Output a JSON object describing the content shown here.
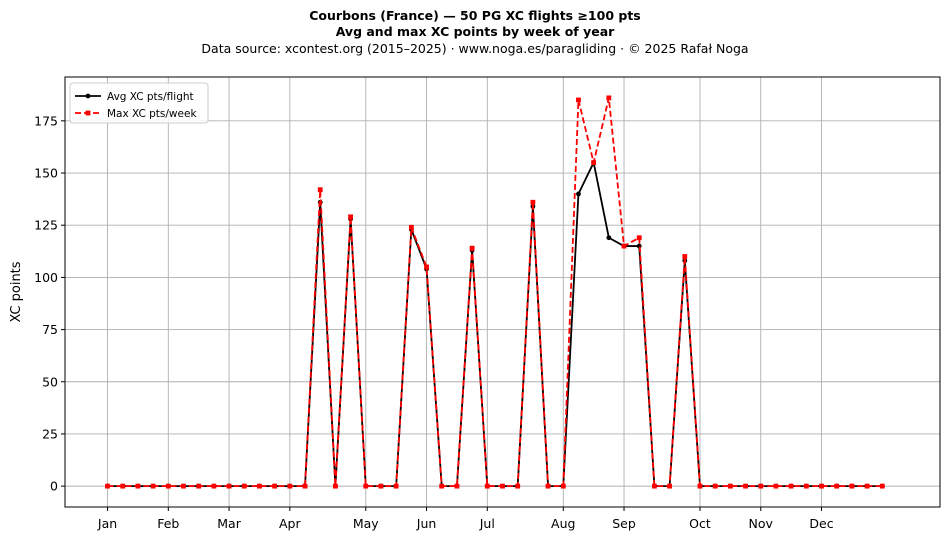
{
  "header": {
    "title_line1": "Courbons (France)  —  50 PG XC flights ≥100 pts",
    "title_line2": "Avg and max XC points by week of year",
    "subtitle": "Data source: xcontest.org (2015–2025)  ·  www.noga.es/paragliding  ·  © 2025 Rafał Noga"
  },
  "chart_data": {
    "type": "line",
    "title": "Courbons (France)  —  50 PG XC flights ≥100 pts",
    "subtitle": "Avg and max XC points by week of year",
    "ylabel": "XC points",
    "xlabel": "",
    "ylim": [
      -10,
      196
    ],
    "xlim": [
      -2.8,
      54.8
    ],
    "yticks": [
      0,
      25,
      50,
      75,
      100,
      125,
      150,
      175
    ],
    "xticks": [
      {
        "label": "Jan",
        "pos": 0
      },
      {
        "label": "Feb",
        "pos": 4
      },
      {
        "label": "Mar",
        "pos": 8
      },
      {
        "label": "Apr",
        "pos": 12
      },
      {
        "label": "May",
        "pos": 17
      },
      {
        "label": "Jun",
        "pos": 21
      },
      {
        "label": "Jul",
        "pos": 25
      },
      {
        "label": "Aug",
        "pos": 30
      },
      {
        "label": "Sep",
        "pos": 34
      },
      {
        "label": "Oct",
        "pos": 39
      },
      {
        "label": "Nov",
        "pos": 43
      },
      {
        "label": "Dec",
        "pos": 47
      }
    ],
    "grid": true,
    "legend_position": "top-left",
    "x": [
      0,
      1,
      2,
      3,
      4,
      5,
      6,
      7,
      8,
      9,
      10,
      11,
      12,
      13,
      14,
      15,
      16,
      17,
      18,
      19,
      20,
      21,
      22,
      23,
      24,
      25,
      26,
      27,
      28,
      29,
      30,
      31,
      32,
      33,
      34,
      35,
      36,
      37,
      38,
      39,
      40,
      41,
      42,
      43,
      44,
      45,
      46,
      47,
      48,
      49,
      50,
      51
    ],
    "series": [
      {
        "name": "Avg XC pts/flight",
        "color": "#000000",
        "style": "solid",
        "marker": "circle",
        "values": [
          0,
          0,
          0,
          0,
          0,
          0,
          0,
          0,
          0,
          0,
          0,
          0,
          0,
          0,
          136,
          0,
          128,
          0,
          0,
          0,
          123,
          104,
          0,
          0,
          113,
          0,
          0,
          0,
          134,
          0,
          0,
          140,
          155,
          119,
          115,
          115,
          0,
          0,
          108,
          0,
          0,
          0,
          0,
          0,
          0,
          0,
          0,
          0,
          0,
          0,
          0,
          0
        ]
      },
      {
        "name": "Max XC pts/week",
        "color": "#ff0000",
        "style": "dashed",
        "marker": "square",
        "values": [
          0,
          0,
          0,
          0,
          0,
          0,
          0,
          0,
          0,
          0,
          0,
          0,
          0,
          0,
          142,
          0,
          129,
          0,
          0,
          0,
          124,
          105,
          0,
          0,
          114,
          0,
          0,
          0,
          136,
          0,
          0,
          185,
          155,
          186,
          115,
          119,
          0,
          0,
          110,
          0,
          0,
          0,
          0,
          0,
          0,
          0,
          0,
          0,
          0,
          0,
          0,
          0
        ]
      }
    ]
  }
}
